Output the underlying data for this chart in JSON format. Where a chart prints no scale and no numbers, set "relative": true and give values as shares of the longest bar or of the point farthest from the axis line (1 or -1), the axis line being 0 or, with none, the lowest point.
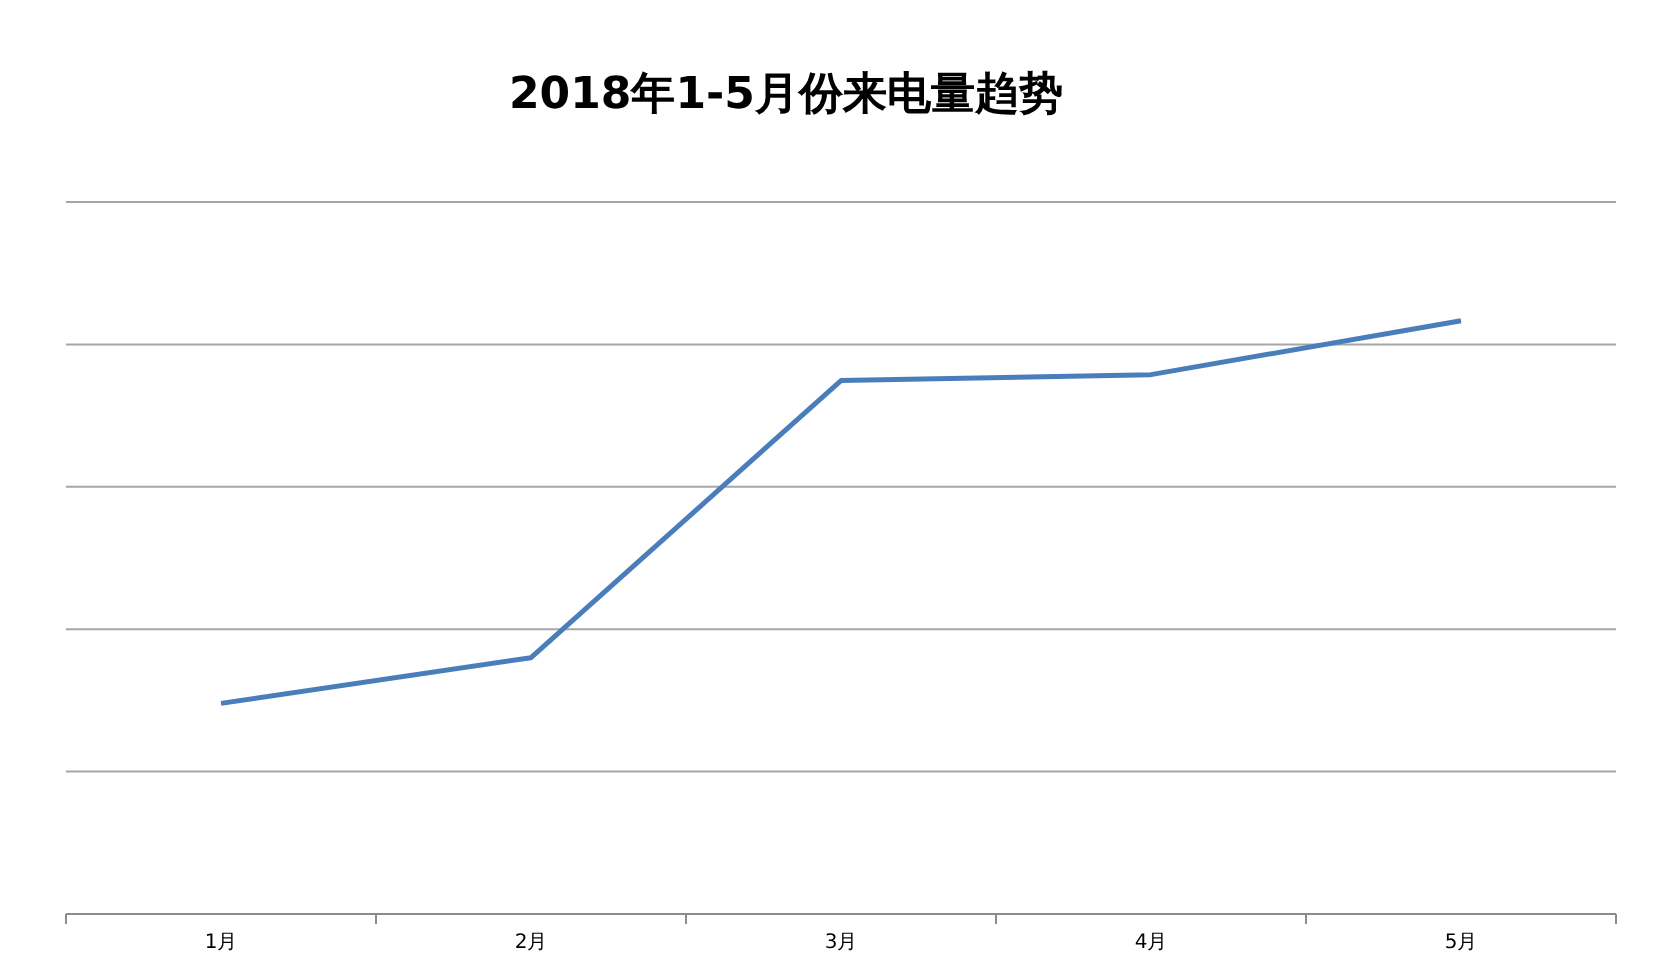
{
  "chart_data": {
    "type": "line",
    "title": "2018年1-5月份来电量趋势",
    "categories": [
      "1月",
      "2月",
      "3月",
      "4月",
      "5月"
    ],
    "relative": true,
    "series": [
      {
        "color": "#4a7ebb",
        "values": [
          0.355,
          0.432,
          0.899,
          0.909,
          1
        ]
      }
    ],
    "grid": "y",
    "marker": "none",
    "line_style": "solid"
  }
}
